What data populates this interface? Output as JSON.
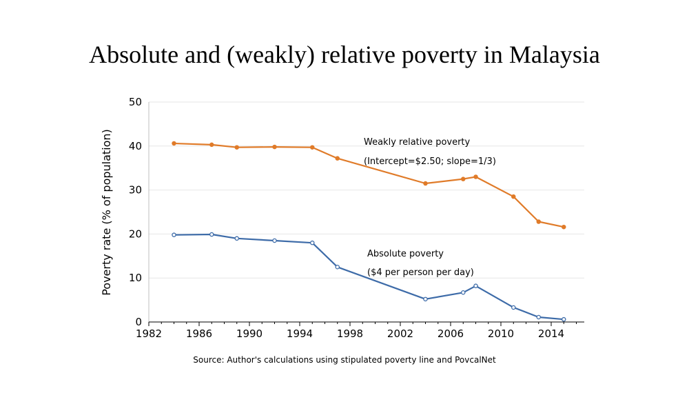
{
  "chart_data": {
    "type": "line",
    "title": "Absolute and (weakly) relative poverty in Malaysia",
    "ylabel": "Poverty rate (% of population)",
    "xlabel": "",
    "xlim": [
      1982,
      2016
    ],
    "ylim": [
      0,
      50
    ],
    "xticks": [
      1982,
      1986,
      1990,
      1994,
      1998,
      2002,
      2006,
      2010,
      2014
    ],
    "yticks": [
      0,
      10,
      20,
      30,
      40,
      50
    ],
    "grid": true,
    "series": [
      {
        "name": "Weakly relative poverty",
        "subtitle": "(Intercept=$2.50; slope=1/3)",
        "color": "#E07B29",
        "marker": "filled",
        "x": [
          1984,
          1987,
          1989,
          1992,
          1995,
          1997,
          2004,
          2007,
          2008,
          2011,
          2013,
          2015
        ],
        "y": [
          40.6,
          40.3,
          39.7,
          39.8,
          39.7,
          37.2,
          31.5,
          32.5,
          33.0,
          28.5,
          22.8,
          21.6
        ]
      },
      {
        "name": "Absolute poverty",
        "subtitle": "($4 per person per day)",
        "color": "#3D6BA8",
        "marker": "hollow",
        "x": [
          1984,
          1987,
          1989,
          1992,
          1995,
          1997,
          2004,
          2007,
          2008,
          2011,
          2013,
          2015
        ],
        "y": [
          19.8,
          19.9,
          19.0,
          18.5,
          18.0,
          12.5,
          5.2,
          6.7,
          8.2,
          3.3,
          1.1,
          0.6
        ]
      }
    ],
    "source": "Source: Author's calculations using stipulated poverty line and PovcalNet"
  }
}
